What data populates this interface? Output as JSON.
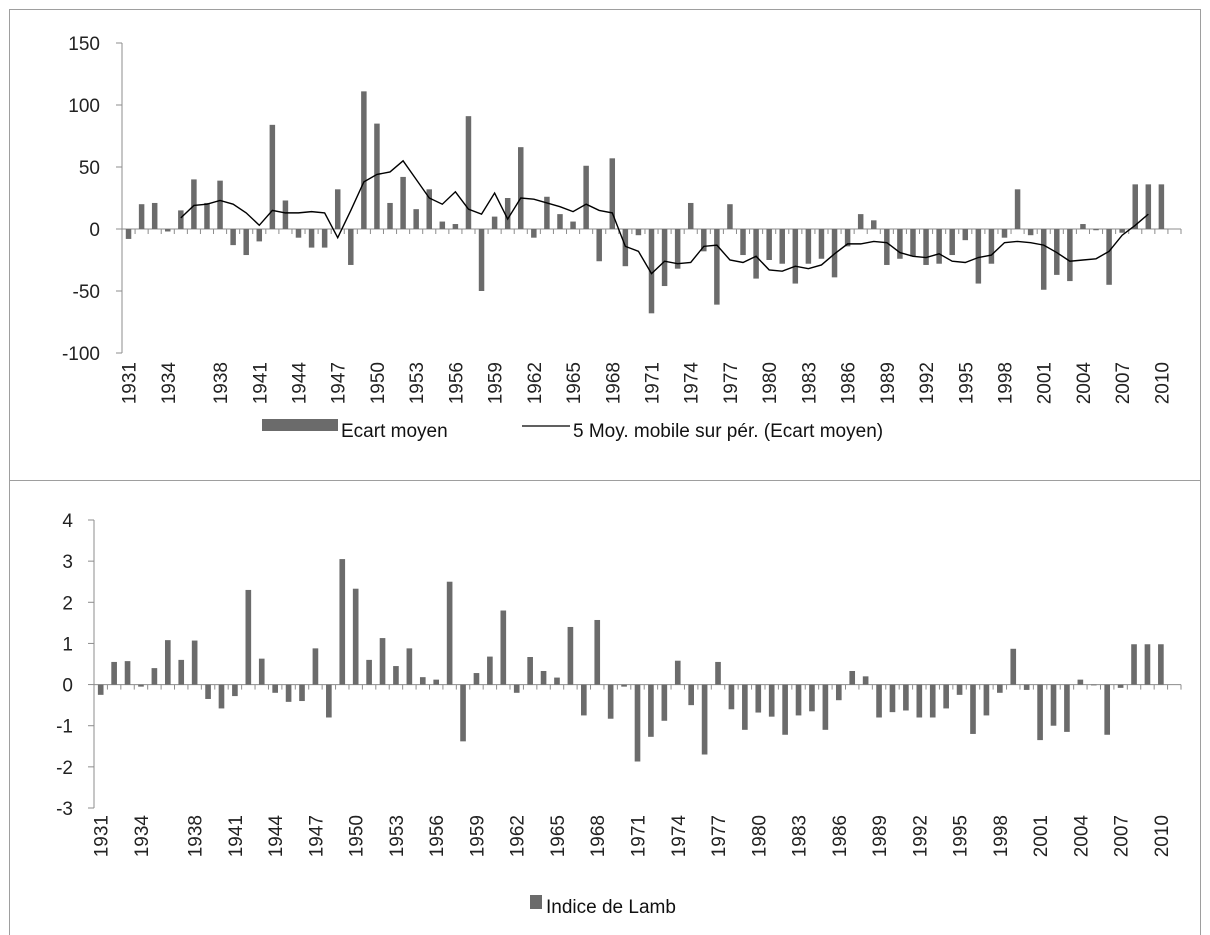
{
  "chart_data": [
    {
      "type": "bar",
      "title": "",
      "xlabel": "",
      "ylabel": "",
      "ylim": [
        -100,
        150
      ],
      "yticks": [
        "150",
        "100",
        "50",
        "0",
        "-50",
        "-100"
      ],
      "ytick_values": [
        150,
        100,
        50,
        0,
        -50,
        -100
      ],
      "x_start": 1931,
      "x_end": 2011,
      "x_tick_labels": [
        "1931",
        "1934",
        "1938",
        "1941",
        "1944",
        "1947",
        "1950",
        "1953",
        "1956",
        "1959",
        "1962",
        "1965",
        "1968",
        "1971",
        "1974",
        "1977",
        "1980",
        "1983",
        "1986",
        "1989",
        "1992",
        "1995",
        "1998",
        "2001",
        "2004",
        "2007",
        "2010"
      ],
      "legend_position": "bottom",
      "bar_color": "#6b6b6b",
      "line_color": "#000000",
      "series": [
        {
          "name": "Ecart moyen",
          "type": "bar",
          "values": [
            -8,
            20,
            21,
            -2,
            15,
            40,
            21,
            39,
            -13,
            -21,
            -10,
            84,
            23,
            -7,
            -15,
            -15,
            32,
            -29,
            111,
            85,
            21,
            42,
            16,
            32,
            6,
            4,
            91,
            -50,
            10,
            25,
            66,
            -7,
            26,
            12,
            6,
            51,
            -26,
            57,
            -30,
            -5,
            -68,
            -46,
            -32,
            21,
            -18,
            -61,
            20,
            -21,
            -40,
            -25,
            -28,
            -44,
            -28,
            -24,
            -39,
            -14,
            12,
            7,
            -29,
            -24,
            -22,
            -29,
            -28,
            -21,
            -9,
            -44,
            -28,
            -7,
            32,
            -5,
            -49,
            -37,
            -42,
            4,
            -1,
            -45,
            -3,
            36,
            36,
            36
          ]
        },
        {
          "name": "5 Moy. mobile sur pér. (Ecart moyen)",
          "type": "line",
          "start_index": 4,
          "values": [
            9,
            19,
            20,
            23,
            20,
            13,
            3,
            15,
            13,
            13,
            14,
            13,
            -7,
            15,
            38,
            44,
            46,
            55,
            40,
            25,
            20,
            30,
            16,
            12,
            29,
            8,
            25,
            24,
            21,
            18,
            14,
            20,
            15,
            13,
            -14,
            -18,
            -36,
            -26,
            -28,
            -27,
            -14,
            -13,
            -25,
            -27,
            -22,
            -33,
            -34,
            -30,
            -32,
            -29,
            -20,
            -12,
            -12,
            -10,
            -11,
            -19,
            -22,
            -23,
            -20,
            -26,
            -27,
            -23,
            -21,
            -11,
            -10,
            -11,
            -13,
            -19,
            -26,
            -25,
            -24,
            -18,
            -5,
            3,
            12
          ]
        }
      ]
    },
    {
      "type": "bar",
      "title": "",
      "xlabel": "",
      "ylabel": "",
      "ylim": [
        -3,
        4
      ],
      "yticks": [
        "4",
        "3",
        "2",
        "1",
        "0",
        "-1",
        "-2",
        "-3"
      ],
      "ytick_values": [
        4,
        3,
        2,
        1,
        0,
        -1,
        -2,
        -3
      ],
      "x_start": 1931,
      "x_end": 2011,
      "x_tick_labels": [
        "1931",
        "1934",
        "1938",
        "1941",
        "1944",
        "1947",
        "1950",
        "1953",
        "1956",
        "1959",
        "1962",
        "1965",
        "1968",
        "1971",
        "1974",
        "1977",
        "1980",
        "1983",
        "1986",
        "1989",
        "1992",
        "1995",
        "1998",
        "2001",
        "2004",
        "2007",
        "2010"
      ],
      "legend_position": "bottom",
      "bar_color": "#6b6b6b",
      "series": [
        {
          "name": "Indice de Lamb",
          "type": "bar",
          "values": [
            -0.25,
            0.55,
            0.57,
            -0.05,
            0.4,
            1.08,
            0.6,
            1.07,
            -0.35,
            -0.58,
            -0.28,
            2.3,
            0.63,
            -0.2,
            -0.42,
            -0.4,
            0.88,
            -0.8,
            3.05,
            2.33,
            0.6,
            1.13,
            0.45,
            0.88,
            0.18,
            0.12,
            2.5,
            -1.38,
            0.28,
            0.68,
            1.8,
            -0.2,
            0.67,
            0.33,
            0.17,
            1.4,
            -0.75,
            1.57,
            -0.83,
            -0.05,
            -1.87,
            -1.27,
            -0.88,
            0.58,
            -0.5,
            -1.7,
            0.55,
            -0.6,
            -1.1,
            -0.68,
            -0.78,
            -1.22,
            -0.75,
            -0.65,
            -1.1,
            -0.38,
            0.33,
            0.2,
            -0.8,
            -0.67,
            -0.63,
            -0.8,
            -0.8,
            -0.58,
            -0.25,
            -1.2,
            -0.75,
            -0.2,
            0.87,
            -0.13,
            -1.35,
            -1.0,
            -1.15,
            0.12,
            -0.02,
            -1.22,
            -0.08,
            0.98,
            0.98,
            0.98
          ]
        }
      ]
    }
  ]
}
